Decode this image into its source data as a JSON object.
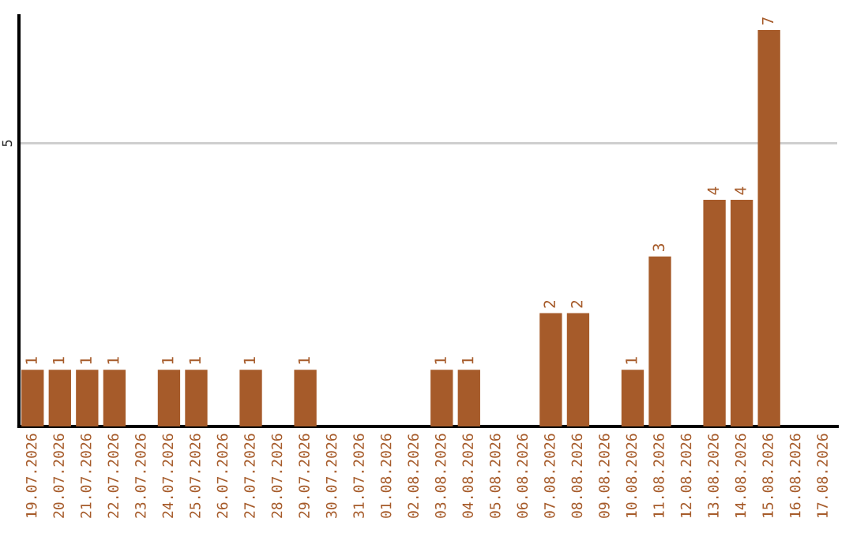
{
  "chart_data": {
    "type": "bar",
    "categories": [
      "19.07.2026",
      "20.07.2026",
      "21.07.2026",
      "22.07.2026",
      "23.07.2026",
      "24.07.2026",
      "25.07.2026",
      "26.07.2026",
      "27.07.2026",
      "28.07.2026",
      "29.07.2026",
      "30.07.2026",
      "31.07.2026",
      "01.08.2026",
      "02.08.2026",
      "03.08.2026",
      "04.08.2026",
      "05.08.2026",
      "06.08.2026",
      "07.08.2026",
      "08.08.2026",
      "09.08.2026",
      "10.08.2026",
      "11.08.2026",
      "12.08.2026",
      "13.08.2026",
      "14.08.2026",
      "15.08.2026",
      "16.08.2026",
      "17.08.2026"
    ],
    "values": [
      1,
      1,
      1,
      1,
      0,
      1,
      1,
      0,
      1,
      0,
      1,
      0,
      0,
      0,
      0,
      1,
      1,
      0,
      0,
      2,
      2,
      0,
      1,
      3,
      0,
      4,
      4,
      7,
      0,
      0
    ],
    "value_labels": [
      "1",
      "1",
      "1",
      "1",
      null,
      "1",
      "1",
      null,
      "1",
      null,
      "1",
      null,
      null,
      null,
      null,
      "1",
      "1",
      null,
      null,
      "2",
      "2",
      null,
      "1",
      "3",
      null,
      "4",
      "4",
      "7",
      null,
      null
    ],
    "color": "#a65b2a",
    "ylim": [
      0,
      7.25
    ],
    "yticks": [
      5
    ],
    "grid": "y"
  }
}
